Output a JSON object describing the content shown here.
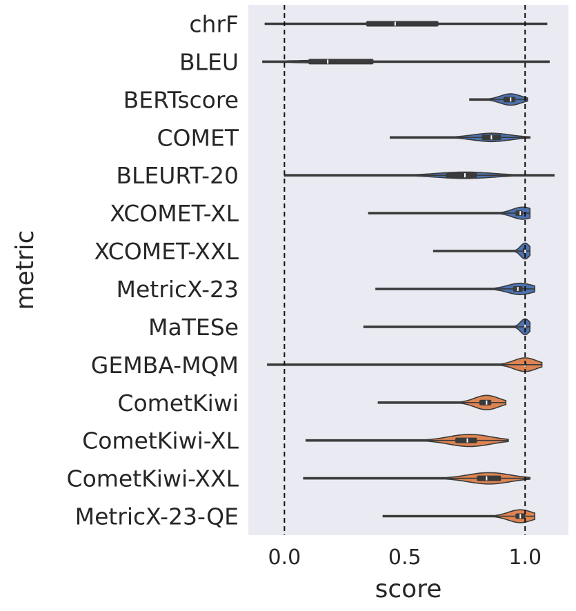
{
  "chart_data": {
    "type": "violin",
    "xlabel": "score",
    "ylabel": "metric",
    "xlim": [
      -0.15,
      1.18
    ],
    "xticks": [
      {
        "value": 0.0,
        "label": "0.0"
      },
      {
        "value": 0.5,
        "label": "0.5"
      },
      {
        "value": 1.0,
        "label": "1.0"
      }
    ],
    "reference_lines": [
      0.0,
      1.0
    ],
    "grid": false,
    "colors": {
      "background": "#eaeaf2",
      "reference_based": "#4c72b0",
      "quality_estimation": "#dd8452",
      "line": "#3a3a3a",
      "text": "#262626"
    },
    "metrics": [
      {
        "name": "chrF",
        "group": "reference_based",
        "min": -0.08,
        "max": 1.09,
        "q1": 0.34,
        "median": 0.46,
        "q3": 0.64,
        "core": [
          0.28,
          0.68
        ],
        "peak": 0.46,
        "width": 0.06
      },
      {
        "name": "BLEU",
        "group": "reference_based",
        "min": -0.09,
        "max": 1.1,
        "q1": 0.1,
        "median": 0.18,
        "q3": 0.37,
        "core": [
          -0.02,
          0.42
        ],
        "peak": 0.16,
        "width": 0.07
      },
      {
        "name": "BERTscore",
        "group": "reference_based",
        "min": 0.77,
        "max": 1.01,
        "q1": 0.91,
        "median": 0.94,
        "q3": 0.96,
        "core": [
          0.86,
          1.0
        ],
        "peak": 0.94,
        "width": 0.3
      },
      {
        "name": "COMET",
        "group": "reference_based",
        "min": 0.44,
        "max": 1.02,
        "q1": 0.82,
        "median": 0.86,
        "q3": 0.9,
        "core": [
          0.72,
          0.97
        ],
        "peak": 0.86,
        "width": 0.22
      },
      {
        "name": "BLEURT-20",
        "group": "reference_based",
        "min": 0.0,
        "max": 1.12,
        "q1": 0.67,
        "median": 0.75,
        "q3": 0.8,
        "core": [
          0.55,
          0.92
        ],
        "peak": 0.75,
        "width": 0.17
      },
      {
        "name": "XCOMET-XL",
        "group": "reference_based",
        "min": 0.35,
        "max": 1.02,
        "q1": 0.96,
        "median": 0.98,
        "q3": 0.99,
        "core": [
          0.88,
          1.02
        ],
        "peak": 0.99,
        "width": 0.32
      },
      {
        "name": "XCOMET-XXL",
        "group": "reference_based",
        "min": 0.62,
        "max": 1.02,
        "q1": 0.99,
        "median": 1.0,
        "q3": 1.0,
        "core": [
          0.96,
          1.02
        ],
        "peak": 1.0,
        "width": 0.42
      },
      {
        "name": "MetricX-23",
        "group": "reference_based",
        "min": 0.38,
        "max": 1.04,
        "q1": 0.95,
        "median": 0.97,
        "q3": 0.99,
        "core": [
          0.86,
          1.03
        ],
        "peak": 0.98,
        "width": 0.3
      },
      {
        "name": "MaTESe",
        "group": "reference_based",
        "min": 0.33,
        "max": 1.02,
        "q1": 1.0,
        "median": 1.0,
        "q3": 1.0,
        "core": [
          0.96,
          1.02
        ],
        "peak": 1.0,
        "width": 0.42
      },
      {
        "name": "GEMBA-MQM",
        "group": "quality_estimation",
        "min": -0.07,
        "max": 1.07,
        "q1": 1.0,
        "median": 1.0,
        "q3": 1.0,
        "core": [
          0.92,
          1.07
        ],
        "peak": 1.0,
        "width": 0.36
      },
      {
        "name": "CometKiwi",
        "group": "quality_estimation",
        "min": 0.39,
        "max": 0.92,
        "q1": 0.81,
        "median": 0.84,
        "q3": 0.86,
        "core": [
          0.74,
          0.9
        ],
        "peak": 0.84,
        "width": 0.38
      },
      {
        "name": "CometKiwi-XL",
        "group": "quality_estimation",
        "min": 0.09,
        "max": 0.93,
        "q1": 0.71,
        "median": 0.76,
        "q3": 0.8,
        "core": [
          0.62,
          0.9
        ],
        "peak": 0.77,
        "width": 0.32
      },
      {
        "name": "CometKiwi-XXL",
        "group": "quality_estimation",
        "min": 0.08,
        "max": 1.02,
        "q1": 0.8,
        "median": 0.84,
        "q3": 0.9,
        "core": [
          0.7,
          0.98
        ],
        "peak": 0.85,
        "width": 0.3
      },
      {
        "name": "MetricX-23-QE",
        "group": "quality_estimation",
        "min": 0.41,
        "max": 1.04,
        "q1": 0.96,
        "median": 0.98,
        "q3": 1.0,
        "core": [
          0.86,
          1.02
        ],
        "peak": 0.98,
        "width": 0.34
      }
    ]
  }
}
